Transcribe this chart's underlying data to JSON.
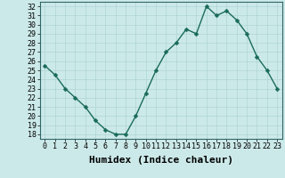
{
  "x": [
    0,
    1,
    2,
    3,
    4,
    5,
    6,
    7,
    8,
    9,
    10,
    11,
    12,
    13,
    14,
    15,
    16,
    17,
    18,
    19,
    20,
    21,
    22,
    23
  ],
  "y": [
    25.5,
    24.5,
    23.0,
    22.0,
    21.0,
    19.5,
    18.5,
    18.0,
    18.0,
    20.0,
    22.5,
    25.0,
    27.0,
    28.0,
    29.5,
    29.0,
    32.0,
    31.0,
    31.5,
    30.5,
    29.0,
    26.5,
    25.0,
    23.0
  ],
  "xlabel": "Humidex (Indice chaleur)",
  "xlim": [
    -0.5,
    23.5
  ],
  "ylim": [
    17.5,
    32.5
  ],
  "yticks": [
    18,
    19,
    20,
    21,
    22,
    23,
    24,
    25,
    26,
    27,
    28,
    29,
    30,
    31,
    32
  ],
  "xticks": [
    0,
    1,
    2,
    3,
    4,
    5,
    6,
    7,
    8,
    9,
    10,
    11,
    12,
    13,
    14,
    15,
    16,
    17,
    18,
    19,
    20,
    21,
    22,
    23
  ],
  "line_color": "#1a6b5a",
  "marker": "D",
  "marker_size": 2.5,
  "bg_color": "#cce9e9",
  "grid_color": "#aed4d4",
  "tick_fontsize": 6,
  "xlabel_fontsize": 8,
  "linewidth": 1.0
}
